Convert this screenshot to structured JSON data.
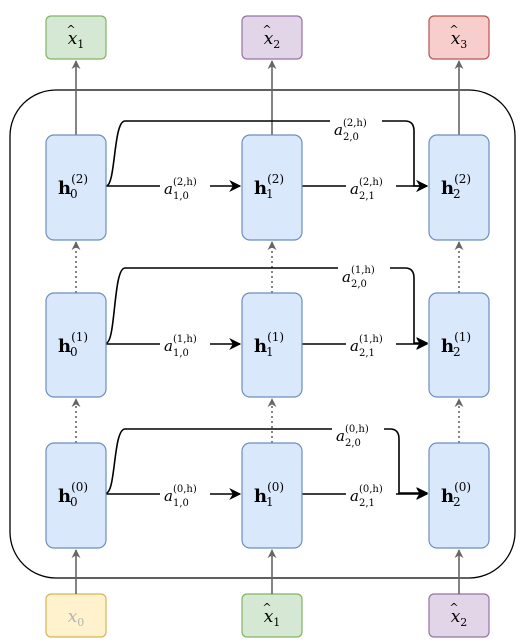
{
  "colors": {
    "hidden_fill": "#dae8fc",
    "hidden_stroke": "#6c8ebf",
    "green_fill": "#d5e8d4",
    "green_stroke": "#82b366",
    "purple_fill": "#e1d5e7",
    "purple_stroke": "#9673a6",
    "red_fill": "#f8cecc",
    "red_stroke": "#b85450",
    "yellow_fill": "#fff2cc",
    "yellow_stroke": "#d6b656",
    "yellow_text": "#b3b3b3",
    "arrow_gray": "#666666",
    "arrow_black": "#000000"
  },
  "outputs": [
    {
      "base": "x",
      "hat": "^",
      "sub": "1",
      "color": "green"
    },
    {
      "base": "x",
      "hat": "^",
      "sub": "2",
      "color": "purple"
    },
    {
      "base": "x",
      "hat": "^",
      "sub": "3",
      "color": "red"
    }
  ],
  "inputs": [
    {
      "base": "x",
      "hat": "",
      "sub": "0",
      "color": "yellow"
    },
    {
      "base": "x",
      "hat": "^",
      "sub": "1",
      "color": "green"
    },
    {
      "base": "x",
      "hat": "^",
      "sub": "2",
      "color": "purple"
    }
  ],
  "layers": [
    {
      "nodes": [
        {
          "base": "h",
          "sub": "0",
          "sup": "(2)"
        },
        {
          "base": "h",
          "sub": "1",
          "sup": "(2)"
        },
        {
          "base": "h",
          "sub": "2",
          "sup": "(2)"
        }
      ],
      "edges": {
        "a10": {
          "base": "a",
          "sub": "1,0",
          "sup": "(2,h)"
        },
        "a21": {
          "base": "a",
          "sub": "2,1",
          "sup": "(2,h)"
        },
        "a20": {
          "base": "a",
          "sub": "2,0",
          "sup": "(2,h)"
        }
      }
    },
    {
      "nodes": [
        {
          "base": "h",
          "sub": "0",
          "sup": "(1)"
        },
        {
          "base": "h",
          "sub": "1",
          "sup": "(1)"
        },
        {
          "base": "h",
          "sub": "2",
          "sup": "(1)"
        }
      ],
      "edges": {
        "a10": {
          "base": "a",
          "sub": "1,0",
          "sup": "(1,h)"
        },
        "a21": {
          "base": "a",
          "sub": "2,1",
          "sup": "(1,h)"
        },
        "a20": {
          "base": "a",
          "sub": "2,0",
          "sup": "(1,h)"
        }
      }
    },
    {
      "nodes": [
        {
          "base": "h",
          "sub": "0",
          "sup": "(0)"
        },
        {
          "base": "h",
          "sub": "1",
          "sup": "(0)"
        },
        {
          "base": "h",
          "sub": "2",
          "sup": "(0)"
        }
      ],
      "edges": {
        "a10": {
          "base": "a",
          "sub": "1,0",
          "sup": "(0,h)"
        },
        "a21": {
          "base": "a",
          "sub": "2,1",
          "sup": "(0,h)"
        },
        "a20": {
          "base": "a",
          "sub": "2,0",
          "sup": "(0,h)"
        }
      }
    }
  ]
}
